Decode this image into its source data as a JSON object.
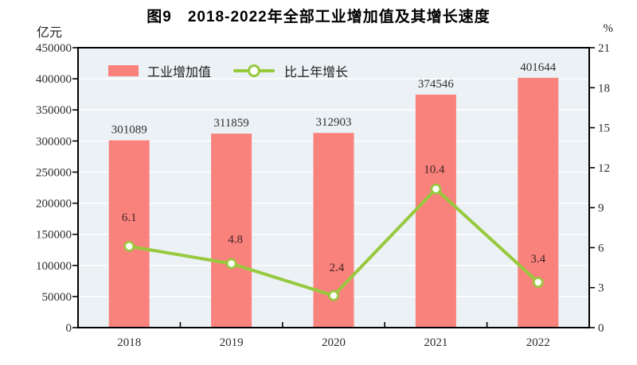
{
  "title": "图9　2018-2022年全部工业增加值及其增长速度",
  "left_axis_unit": "亿元",
  "right_axis_unit": "%",
  "legend": {
    "bar_label": "工业增加值",
    "line_label": "比上年增长"
  },
  "colors": {
    "bar": "#fa827d",
    "line": "#97c93d",
    "marker_fill": "#fefefa",
    "plot_bg": "#ebf1f5",
    "grid": "#ffffff",
    "axis": "#000000",
    "bar_label": "#2f2f2f",
    "line_label": "#3c2422"
  },
  "chart_data": {
    "type": "bar+line",
    "title": "图9　2018-2022年全部工业增加值及其增长速度",
    "categories": [
      "2018",
      "2019",
      "2020",
      "2021",
      "2022"
    ],
    "series": [
      {
        "name": "工业增加值",
        "type": "bar",
        "axis": "left",
        "unit": "亿元",
        "values": [
          301089,
          311859,
          312903,
          374546,
          401644
        ]
      },
      {
        "name": "比上年增长",
        "type": "line",
        "axis": "right",
        "unit": "%",
        "values": [
          6.1,
          4.8,
          2.4,
          10.4,
          3.4
        ]
      }
    ],
    "left_axis": {
      "label": "亿元",
      "min": 0,
      "max": 450000,
      "step": 50000,
      "tick_labels": [
        "0",
        "50000",
        "100000",
        "150000",
        "200000",
        "250000",
        "300000",
        "350000",
        "400000",
        "450000"
      ]
    },
    "right_axis": {
      "label": "%",
      "min": 0,
      "max": 21,
      "step": 3,
      "tick_labels": [
        "0",
        "3",
        "6",
        "9",
        "12",
        "15",
        "18",
        "21"
      ]
    },
    "grid": "horizontal white gridlines on light blue plot background",
    "legend_position": "top-left inside plot area"
  }
}
